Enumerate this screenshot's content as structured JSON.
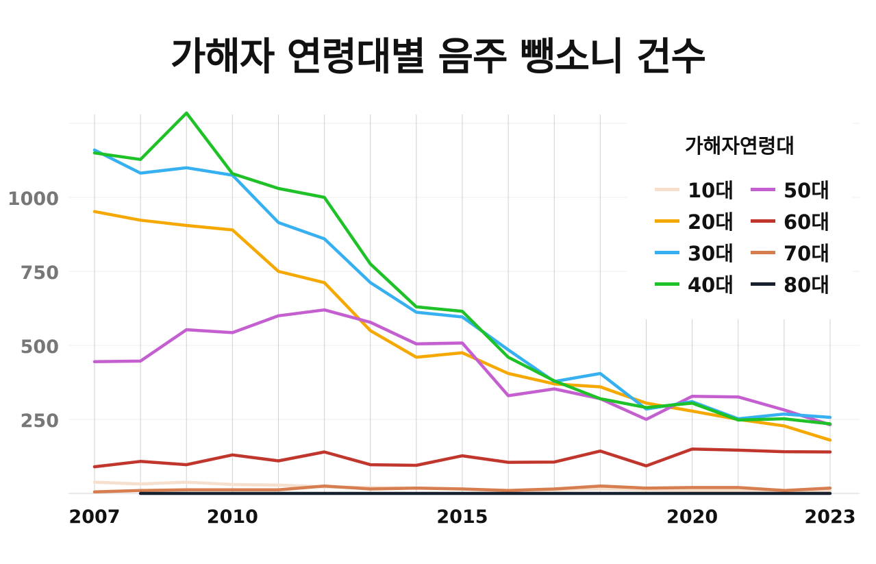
{
  "chart_data": {
    "type": "line",
    "title": "가해자 연령대별 음주 뺑소니 건수",
    "x": [
      2007,
      2008,
      2009,
      2010,
      2011,
      2012,
      2013,
      2014,
      2015,
      2016,
      2017,
      2018,
      2019,
      2020,
      2021,
      2022,
      2023
    ],
    "x_ticks": [
      "2007",
      "2010",
      "2015",
      "2020",
      "2023"
    ],
    "y_ticks": [
      "250",
      "500",
      "750",
      "1000"
    ],
    "ylim": [
      0,
      1280
    ],
    "xlabel": "",
    "ylabel": "",
    "grid": true,
    "legend": {
      "title": "가해자연령대",
      "position": "top-right"
    },
    "series": [
      {
        "name": "10대",
        "color": "#f6dfcd",
        "values": [
          38,
          32,
          38,
          30,
          28,
          22,
          20,
          18,
          15,
          10,
          12,
          15,
          12,
          10,
          10,
          8,
          8
        ]
      },
      {
        "name": "20대",
        "color": "#f5a800",
        "values": [
          952,
          923,
          905,
          890,
          750,
          712,
          550,
          460,
          475,
          405,
          370,
          360,
          305,
          278,
          250,
          228,
          180
        ]
      },
      {
        "name": "30대",
        "color": "#36b0f0",
        "values": [
          1160,
          1082,
          1100,
          1075,
          915,
          860,
          712,
          612,
          596,
          485,
          378,
          405,
          285,
          310,
          252,
          268,
          257
        ]
      },
      {
        "name": "40대",
        "color": "#1ec127",
        "values": [
          1150,
          1128,
          1285,
          1080,
          1030,
          1000,
          775,
          630,
          615,
          460,
          380,
          320,
          290,
          305,
          248,
          252,
          235
        ]
      },
      {
        "name": "50대",
        "color": "#c45fcf",
        "values": [
          445,
          447,
          553,
          543,
          600,
          620,
          578,
          505,
          508,
          330,
          353,
          320,
          250,
          328,
          326,
          282,
          232
        ]
      },
      {
        "name": "60대",
        "color": "#c0362d",
        "values": [
          90,
          108,
          97,
          130,
          110,
          140,
          97,
          95,
          127,
          105,
          106,
          143,
          93,
          150,
          146,
          141,
          140
        ]
      },
      {
        "name": "70대",
        "color": "#d67e4f",
        "values": [
          5,
          10,
          12,
          12,
          12,
          25,
          15,
          18,
          15,
          10,
          15,
          25,
          18,
          20,
          20,
          10,
          18
        ]
      },
      {
        "name": "80대",
        "color": "#16202e",
        "values": [
          null,
          0,
          0,
          0,
          0,
          0,
          0,
          0,
          0,
          0,
          0,
          0,
          0,
          0,
          0,
          0,
          0
        ]
      }
    ]
  }
}
